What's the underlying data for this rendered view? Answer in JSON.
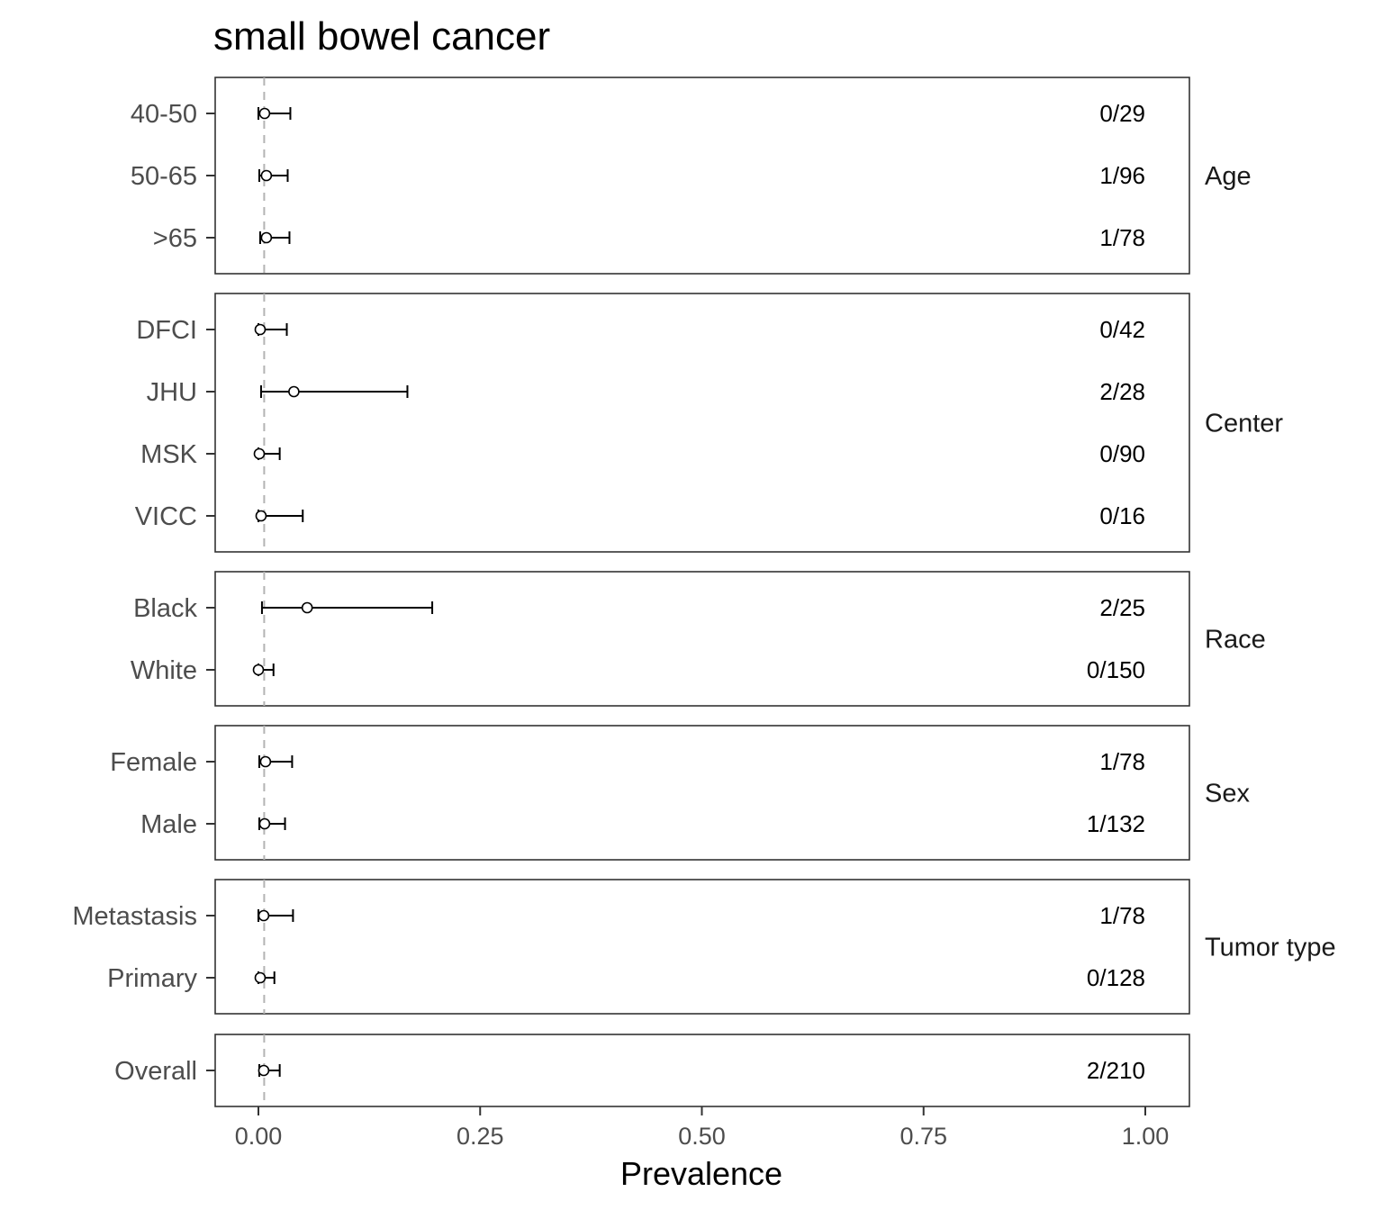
{
  "chart_data": {
    "type": "scatter",
    "title": "small bowel cancer",
    "xlabel": "Prevalence",
    "ylabel": "",
    "xlim": [
      -0.05,
      1.05
    ],
    "x_ticks": [
      0,
      0.25,
      0.5,
      0.75,
      1
    ],
    "x_tick_labels": [
      "0.00",
      "0.25",
      "0.50",
      "0.75",
      "1.00"
    ],
    "reference_line": 0.0065,
    "grid": false,
    "panels": [
      {
        "facet": "Age",
        "rows": [
          {
            "label": "40-50",
            "estimate": 0.007,
            "lower": 0.0,
            "upper": 0.036,
            "count": "0/29"
          },
          {
            "label": "50-65",
            "estimate": 0.009,
            "lower": 0.001,
            "upper": 0.033,
            "count": "1/96"
          },
          {
            "label": ">65",
            "estimate": 0.009,
            "lower": 0.002,
            "upper": 0.035,
            "count": "1/78"
          }
        ]
      },
      {
        "facet": "Center",
        "rows": [
          {
            "label": "DFCI",
            "estimate": 0.002,
            "lower": 0.0,
            "upper": 0.032,
            "count": "0/42"
          },
          {
            "label": "JHU",
            "estimate": 0.04,
            "lower": 0.003,
            "upper": 0.168,
            "count": "2/28"
          },
          {
            "label": "MSK",
            "estimate": 0.001,
            "lower": 0.0,
            "upper": 0.024,
            "count": "0/90"
          },
          {
            "label": "VICC",
            "estimate": 0.003,
            "lower": 0.0,
            "upper": 0.05,
            "count": "0/16"
          }
        ]
      },
      {
        "facet": "Race",
        "rows": [
          {
            "label": "Black",
            "estimate": 0.055,
            "lower": 0.004,
            "upper": 0.196,
            "count": "2/25"
          },
          {
            "label": "White",
            "estimate": 0.0,
            "lower": 0.0,
            "upper": 0.017,
            "count": "0/150"
          }
        ]
      },
      {
        "facet": "Sex",
        "rows": [
          {
            "label": "Female",
            "estimate": 0.008,
            "lower": 0.001,
            "upper": 0.038,
            "count": "1/78"
          },
          {
            "label": "Male",
            "estimate": 0.007,
            "lower": 0.001,
            "upper": 0.03,
            "count": "1/132"
          }
        ]
      },
      {
        "facet": "Tumor type",
        "rows": [
          {
            "label": "Metastasis",
            "estimate": 0.006,
            "lower": 0.0,
            "upper": 0.039,
            "count": "1/78"
          },
          {
            "label": "Primary",
            "estimate": 0.002,
            "lower": 0.0,
            "upper": 0.018,
            "count": "0/128"
          }
        ]
      },
      {
        "facet": "",
        "rows": [
          {
            "label": "Overall",
            "estimate": 0.006,
            "lower": 0.001,
            "upper": 0.024,
            "count": "2/210"
          }
        ]
      }
    ]
  }
}
